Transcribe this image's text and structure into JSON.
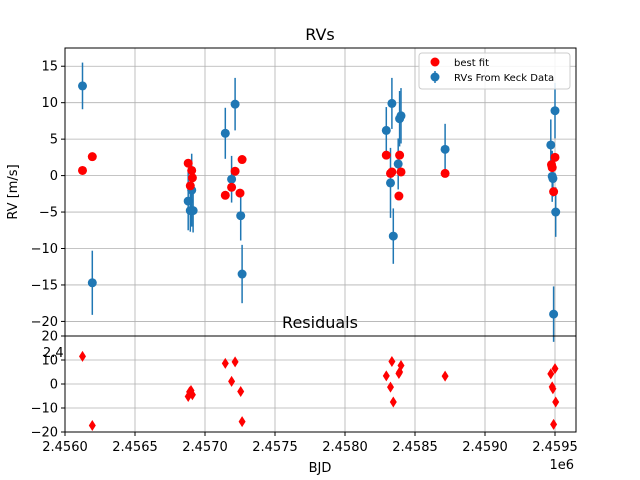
{
  "chart_data": [
    {
      "type": "scatter",
      "title": "RVs",
      "xlabel": "",
      "ylabel": "RV [m/s]",
      "ylim": [
        -22,
        17.5
      ],
      "xlim": [
        2456000,
        2459650
      ],
      "grid": true,
      "y_ticks": [
        "15",
        "10",
        "5",
        "0",
        "−5",
        "−10",
        "−15",
        "−20"
      ],
      "y_tick_values": [
        15,
        10,
        5,
        0,
        -5,
        -10,
        -15,
        -20
      ],
      "legend_position": "top-right",
      "legend": [
        {
          "label": "best fit",
          "color": "#ff0000",
          "marker": "circle"
        },
        {
          "label": "RVs From Keck Data",
          "color": "#1f77b4",
          "marker": "circle-errorbar"
        }
      ],
      "series": [
        {
          "name": "RVs From Keck Data",
          "color": "#1f77b4",
          "points": [
            {
              "x": 2456125,
              "y": 12.3,
              "err": 3.2
            },
            {
              "x": 2456195,
              "y": -14.7,
              "err": 4.4
            },
            {
              "x": 2456880,
              "y": -3.5,
              "err": 4.0
            },
            {
              "x": 2456895,
              "y": -4.8,
              "err": 2.9
            },
            {
              "x": 2456905,
              "y": -2.0,
              "err": 5.0
            },
            {
              "x": 2456915,
              "y": -4.8,
              "err": 3.0
            },
            {
              "x": 2457145,
              "y": 5.8,
              "err": 3.5
            },
            {
              "x": 2457190,
              "y": -0.5,
              "err": 3.2
            },
            {
              "x": 2457215,
              "y": 9.8,
              "err": 3.6
            },
            {
              "x": 2457255,
              "y": -5.5,
              "err": 3.4
            },
            {
              "x": 2457265,
              "y": -13.5,
              "err": 4.0
            },
            {
              "x": 2458295,
              "y": 6.2,
              "err": 3.2
            },
            {
              "x": 2458325,
              "y": -1.0,
              "err": 4.8
            },
            {
              "x": 2458335,
              "y": 9.9,
              "err": 3.5
            },
            {
              "x": 2458345,
              "y": -8.3,
              "err": 3.8
            },
            {
              "x": 2458380,
              "y": 1.6,
              "err": 3.5
            },
            {
              "x": 2458390,
              "y": 7.8,
              "err": 3.8
            },
            {
              "x": 2458400,
              "y": 8.2,
              "err": 3.8
            },
            {
              "x": 2458715,
              "y": 3.6,
              "err": 3.5
            },
            {
              "x": 2459470,
              "y": 4.2,
              "err": 3.5
            },
            {
              "x": 2459480,
              "y": -0.1,
              "err": 3.5
            },
            {
              "x": 2459485,
              "y": -0.4,
              "err": 2.5
            },
            {
              "x": 2459490,
              "y": -19.0,
              "err": 3.8
            },
            {
              "x": 2459500,
              "y": 8.9,
              "err": 3.8
            },
            {
              "x": 2459505,
              "y": -5.0,
              "err": 3.4
            }
          ]
        },
        {
          "name": "best fit",
          "color": "#ff0000",
          "points": [
            {
              "x": 2456125,
              "y": 0.7
            },
            {
              "x": 2456195,
              "y": 2.6
            },
            {
              "x": 2456880,
              "y": 1.7
            },
            {
              "x": 2456895,
              "y": -1.4
            },
            {
              "x": 2456905,
              "y": 0.7
            },
            {
              "x": 2456910,
              "y": -0.3
            },
            {
              "x": 2457145,
              "y": -2.7
            },
            {
              "x": 2457190,
              "y": -1.6
            },
            {
              "x": 2457215,
              "y": 0.6
            },
            {
              "x": 2457250,
              "y": -2.4
            },
            {
              "x": 2457265,
              "y": 2.2
            },
            {
              "x": 2458295,
              "y": 2.8
            },
            {
              "x": 2458325,
              "y": 0.3
            },
            {
              "x": 2458335,
              "y": 0.5
            },
            {
              "x": 2458385,
              "y": -2.8
            },
            {
              "x": 2458390,
              "y": 2.8
            },
            {
              "x": 2458400,
              "y": 0.5
            },
            {
              "x": 2458715,
              "y": 0.3
            },
            {
              "x": 2459475,
              "y": 1.5
            },
            {
              "x": 2459480,
              "y": 1.1
            },
            {
              "x": 2459490,
              "y": -2.2
            },
            {
              "x": 2459500,
              "y": 2.5
            }
          ]
        }
      ]
    },
    {
      "type": "scatter",
      "title": "Residuals",
      "xlabel": "BJD",
      "ylabel": "",
      "ylim": [
        -20,
        20
      ],
      "xlim": [
        2456000,
        2459650
      ],
      "grid": true,
      "y_ticks": [
        "20",
        "10",
        "0",
        "−10",
        "−20"
      ],
      "y_tick_values": [
        20,
        10,
        0,
        -10,
        -20
      ],
      "x_ticks": [
        "2.4560",
        "2.4565",
        "2.4570",
        "2.4575",
        "2.4580",
        "2.4585",
        "2.4590",
        "2.4595"
      ],
      "x_tick_values": [
        2456000,
        2456500,
        2457000,
        2457500,
        2458000,
        2458500,
        2459000,
        2459500
      ],
      "x_offset_label": "1e6",
      "overlap_fragment": "2.4",
      "series": [
        {
          "name": "",
          "color": "#ff0000",
          "marker": "diamond",
          "points": [
            {
              "x": 2456125,
              "y": 11.5
            },
            {
              "x": 2456195,
              "y": -17.3
            },
            {
              "x": 2456880,
              "y": -5.2
            },
            {
              "x": 2456890,
              "y": -3.3
            },
            {
              "x": 2456900,
              "y": -2.7
            },
            {
              "x": 2456910,
              "y": -4.5
            },
            {
              "x": 2457145,
              "y": 8.6
            },
            {
              "x": 2457190,
              "y": 1.1
            },
            {
              "x": 2457215,
              "y": 9.2
            },
            {
              "x": 2457255,
              "y": -3.1
            },
            {
              "x": 2457265,
              "y": -15.7
            },
            {
              "x": 2458295,
              "y": 3.4
            },
            {
              "x": 2458325,
              "y": -1.3
            },
            {
              "x": 2458335,
              "y": 9.4
            },
            {
              "x": 2458345,
              "y": -7.5
            },
            {
              "x": 2458385,
              "y": 4.4
            },
            {
              "x": 2458390,
              "y": 5.0
            },
            {
              "x": 2458400,
              "y": 7.7
            },
            {
              "x": 2458715,
              "y": 3.3
            },
            {
              "x": 2459470,
              "y": 4.2
            },
            {
              "x": 2459480,
              "y": -1.2
            },
            {
              "x": 2459485,
              "y": -2.0
            },
            {
              "x": 2459490,
              "y": -16.8
            },
            {
              "x": 2459500,
              "y": 6.4
            },
            {
              "x": 2459505,
              "y": -7.5
            }
          ]
        }
      ]
    }
  ]
}
